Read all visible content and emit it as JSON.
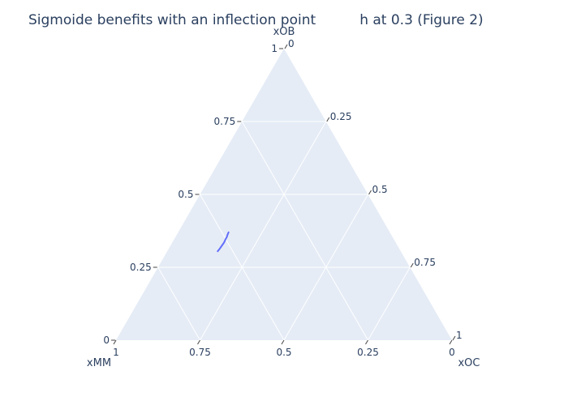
{
  "chart_data": {
    "type": "ternary-line",
    "title": "Sigmoide benefits with an inflection point          h at 0.3 (Figure 2)",
    "axes": {
      "a": {
        "title": "xOB",
        "ticks": [
          "0",
          "0.25",
          "0.5",
          "0.75",
          "1"
        ]
      },
      "b": {
        "title": "xMM",
        "ticks": [
          "0",
          "0.25",
          "0.5",
          "0.75",
          "1"
        ]
      },
      "c": {
        "title": "xOC",
        "ticks": [
          "0",
          "0.25",
          "0.5",
          "0.75",
          "1"
        ]
      }
    },
    "grid": true,
    "background_color": "#e5ecf6",
    "series": [
      {
        "color": "#636efa",
        "points": [
          {
            "a": 0.305,
            "b": 0.545,
            "c": 0.15
          },
          {
            "a": 0.315,
            "b": 0.533,
            "c": 0.152
          },
          {
            "a": 0.325,
            "b": 0.522,
            "c": 0.153
          },
          {
            "a": 0.335,
            "b": 0.511,
            "c": 0.154
          },
          {
            "a": 0.345,
            "b": 0.502,
            "c": 0.153
          },
          {
            "a": 0.353,
            "b": 0.494,
            "c": 0.153
          },
          {
            "a": 0.362,
            "b": 0.487,
            "c": 0.151
          },
          {
            "a": 0.37,
            "b": 0.48,
            "c": 0.15
          }
        ]
      }
    ]
  }
}
